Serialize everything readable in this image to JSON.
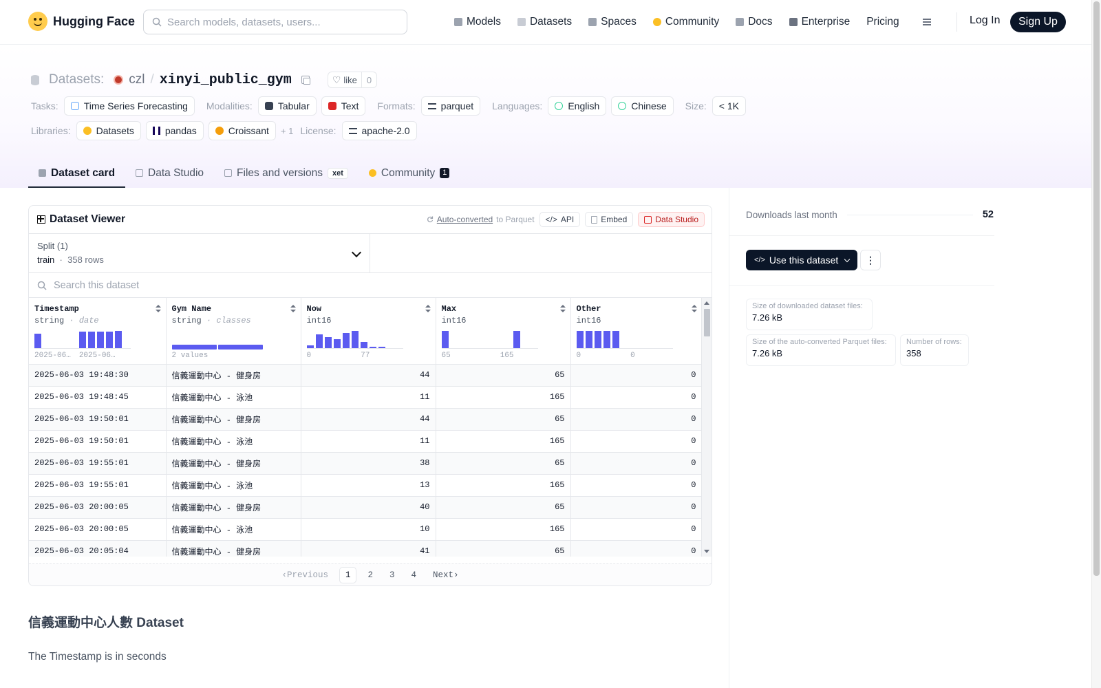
{
  "topnav": {
    "brand": "Hugging Face",
    "search_placeholder": "Search models, datasets, users...",
    "links": [
      {
        "label": "Models",
        "icon": "models-icon",
        "color": "#9ca3af"
      },
      {
        "label": "Datasets",
        "icon": "datasets-icon",
        "color": "#c8ccd4"
      },
      {
        "label": "Spaces",
        "icon": "spaces-icon",
        "color": "#9ca3af"
      },
      {
        "label": "Community",
        "icon": "community-icon",
        "color": "#fbbf24"
      },
      {
        "label": "Docs",
        "icon": "docs-icon",
        "color": "#9ca3af"
      },
      {
        "label": "Enterprise",
        "icon": "enterprise-icon",
        "color": "#6b7280"
      },
      {
        "label": "Pricing",
        "icon": "",
        "color": ""
      }
    ],
    "login": "Log In",
    "signup": "Sign Up"
  },
  "repo": {
    "section": "Datasets:",
    "owner": "czl",
    "slash": "/",
    "name": "xinyi_public_gym",
    "like_label": "like",
    "like_count": "0"
  },
  "tag_groups": [
    {
      "label": "Tasks:",
      "tags": [
        {
          "text": "Time Series Forecasting",
          "icon": "chart-icon",
          "color": "#60a5fa"
        }
      ]
    },
    {
      "label": "Modalities:",
      "tags": [
        {
          "text": "Tabular",
          "icon": "tabular-icon",
          "color": "#374151"
        },
        {
          "text": "Text",
          "icon": "text-icon",
          "color": "#dc2626"
        }
      ]
    },
    {
      "label": "Formats:",
      "tags": [
        {
          "text": "parquet",
          "icon": "parquet-icon",
          "color": "#374151"
        }
      ]
    },
    {
      "label": "Languages:",
      "tags": [
        {
          "text": "English",
          "icon": "globe-icon",
          "color": "#34d399"
        },
        {
          "text": "Chinese",
          "icon": "globe-icon",
          "color": "#34d399"
        }
      ]
    },
    {
      "label": "Size:",
      "tags": [
        {
          "text": "< 1K",
          "icon": "",
          "color": ""
        }
      ]
    },
    {
      "label": "Libraries:",
      "tags": [
        {
          "text": "Datasets",
          "icon": "hf-icon",
          "color": "#fbbf24"
        },
        {
          "text": "pandas",
          "icon": "pandas-icon",
          "color": "#150458"
        },
        {
          "text": "Croissant",
          "icon": "croissant-icon",
          "color": "#f59e0b"
        }
      ],
      "extra": "+ 1"
    },
    {
      "label": "License:",
      "tags": [
        {
          "text": "apache-2.0",
          "icon": "license-icon",
          "color": "#374151"
        }
      ]
    }
  ],
  "tabs": [
    {
      "label": "Dataset card",
      "icon": "card-icon",
      "active": true
    },
    {
      "label": "Data Studio",
      "icon": "table-icon"
    },
    {
      "label": "Files and versions",
      "icon": "files-icon",
      "badge": "xet"
    },
    {
      "label": "Community",
      "icon": "community-icon",
      "count": "1"
    }
  ],
  "viewer": {
    "title": "Dataset Viewer",
    "auto_converted": "Auto-converted",
    "to_parquet": "to Parquet",
    "api_label": "API",
    "embed_label": "Embed",
    "studio_label": "Data Studio",
    "split_label": "Split (1)",
    "split_name": "train",
    "split_rows": "358 rows",
    "search_placeholder": "Search this dataset",
    "columns": [
      {
        "name": "Timestamp",
        "type": "string",
        "sub": "date",
        "hist": [
          0.85,
          0,
          0,
          0,
          0.05,
          0.95,
          0.95,
          0.95,
          0.95,
          1.0
        ],
        "labels": [
          "2025-06…",
          "2025-06…"
        ]
      },
      {
        "name": "Gym Name",
        "type": "string",
        "sub": "classes",
        "classes": "2 values",
        "class_split": [
          0.5,
          0.5
        ]
      },
      {
        "name": "Now",
        "type": "int16",
        "sub": "",
        "hist": [
          0.2,
          0.8,
          0.65,
          0.55,
          0.9,
          1.0,
          0.4,
          0.1,
          0.12,
          0.05
        ],
        "labels": [
          "0",
          "77"
        ]
      },
      {
        "name": "Max",
        "type": "int16",
        "sub": "",
        "hist": [
          1.0,
          0,
          0,
          0,
          0,
          0,
          0,
          0,
          1.0,
          0
        ],
        "labels": [
          "65",
          "165"
        ]
      },
      {
        "name": "Other",
        "type": "int16",
        "sub": "",
        "hist": [
          1.0,
          1.0,
          1.0,
          1.0,
          1.0,
          0,
          0,
          0,
          0,
          0
        ],
        "labels": [
          "0",
          "0"
        ]
      }
    ],
    "rows": [
      [
        "2025-06-03 19:48:30",
        "信義運動中心 - 健身房",
        "44",
        "65",
        "0"
      ],
      [
        "2025-06-03 19:48:45",
        "信義運動中心 - 泳池",
        "11",
        "165",
        "0"
      ],
      [
        "2025-06-03 19:50:01",
        "信義運動中心 - 健身房",
        "44",
        "65",
        "0"
      ],
      [
        "2025-06-03 19:50:01",
        "信義運動中心 - 泳池",
        "11",
        "165",
        "0"
      ],
      [
        "2025-06-03 19:55:01",
        "信義運動中心 - 健身房",
        "38",
        "65",
        "0"
      ],
      [
        "2025-06-03 19:55:01",
        "信義運動中心 - 泳池",
        "13",
        "165",
        "0"
      ],
      [
        "2025-06-03 20:00:05",
        "信義運動中心 - 健身房",
        "40",
        "65",
        "0"
      ],
      [
        "2025-06-03 20:00:05",
        "信義運動中心 - 泳池",
        "10",
        "165",
        "0"
      ],
      [
        "2025-06-03 20:05:04",
        "信義運動中心 - 健身房",
        "41",
        "65",
        "0"
      ]
    ],
    "pager": {
      "prev": "Previous",
      "pages": [
        "1",
        "2",
        "3",
        "4"
      ],
      "next": "Next",
      "current": "1"
    }
  },
  "card": {
    "title": "信義運動中心人數 Dataset",
    "text": "The Timestamp is in seconds"
  },
  "sidebar": {
    "downloads_label": "Downloads last month",
    "downloads_value": "52",
    "use_label": "Use this dataset",
    "stats": [
      {
        "label": "Size of downloaded dataset files:",
        "value": "7.26 kB"
      },
      {
        "label": "Size of the auto-converted Parquet files:",
        "value": "7.26 kB"
      },
      {
        "label": "Number of rows:",
        "value": "358"
      }
    ]
  },
  "colors": {
    "accent": "#5b5bf0",
    "dark_button": "#0b1628"
  }
}
